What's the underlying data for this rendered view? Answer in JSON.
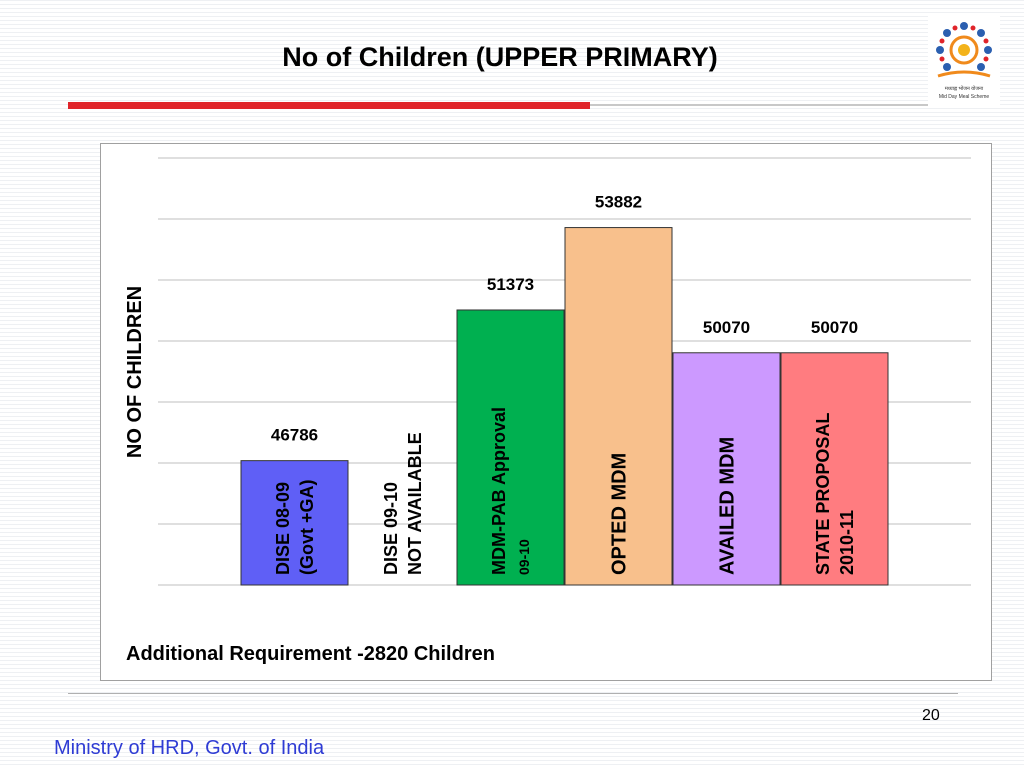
{
  "slide": {
    "title": "No of Children (UPPER PRIMARY)",
    "footnote": "Additional Requirement -2820 Children",
    "page_number": "20",
    "footer": "Ministry of HRD, Govt. of India",
    "logo_caption_line1": "मध्याह्न भोजन योजना",
    "logo_caption_line2": "Mid Day Meal Scheme"
  },
  "colors": {
    "title_rule": "#e0242a",
    "footer_text": "#2f3cd4"
  },
  "chart_data": {
    "type": "bar",
    "ylabel": "NO OF CHILDREN",
    "grid": true,
    "ylim": [
      43000,
      56000
    ],
    "categories": [
      {
        "label": "DISE 08-09 (Govt +GA)",
        "lines": [
          "DISE 08-09",
          "(Govt +GA)"
        ],
        "value": 46786,
        "value_label": "46786",
        "color": "#5f5ff6",
        "text_color": "#000000"
      },
      {
        "label": "DISE 09-10 NOT AVAILABLE",
        "lines": [
          "DISE 09-10",
          "NOT AVAILABLE"
        ],
        "value": null,
        "value_label": "",
        "color": "none",
        "text_color": "#000000"
      },
      {
        "label": "MDM-PAB Approval 09-10",
        "lines": [
          "MDM-PAB Approval",
          "09-10"
        ],
        "value": 51373,
        "value_label": "51373",
        "color": "#00b050",
        "text_color": "#000000"
      },
      {
        "label": "OPTED MDM",
        "lines": [
          "OPTED MDM"
        ],
        "value": 53882,
        "value_label": "53882",
        "color": "#f8c08c",
        "text_color": "#000000"
      },
      {
        "label": "AVAILED MDM",
        "lines": [
          "AVAILED MDM"
        ],
        "value": 50070,
        "value_label": "50070",
        "color": "#cc99ff",
        "text_color": "#000000"
      },
      {
        "label": "STATE PROPOSAL 2010-11",
        "lines": [
          "STATE PROPOSAL",
          "2010-11"
        ],
        "value": 50070,
        "value_label": "50070",
        "color": "#ff7c80",
        "text_color": "#000000"
      }
    ]
  }
}
